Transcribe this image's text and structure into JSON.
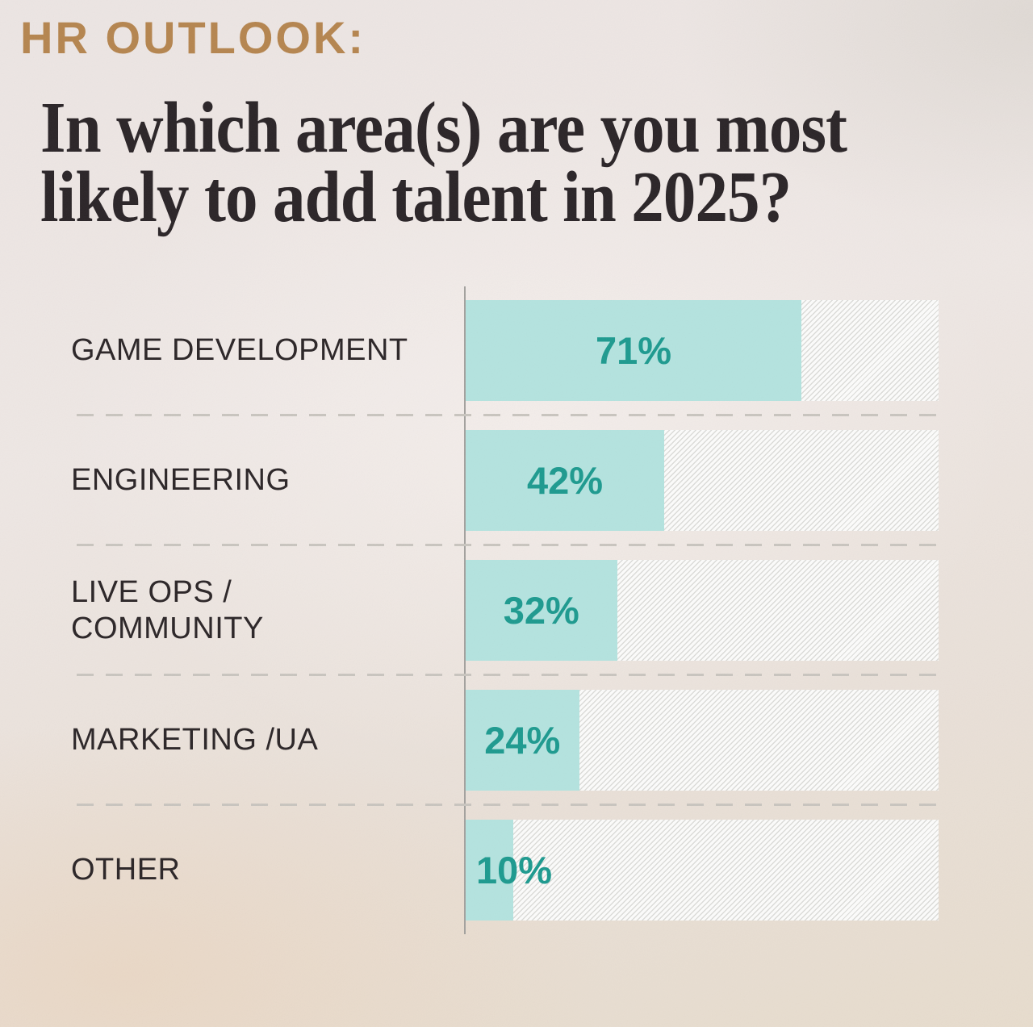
{
  "header": {
    "kicker": "HR OUTLOOK:"
  },
  "title": "In which area(s) are you most\nlikely to add talent in 2025?",
  "chart_data": {
    "type": "bar",
    "orientation": "horizontal",
    "title": "In which area(s) are you most likely to add talent in 2025?",
    "kicker": "HR OUTLOOK:",
    "categories": [
      "GAME DEVELOPMENT",
      "ENGINEERING",
      "LIVE OPS /\nCOMMUNITY",
      "MARKETING /UA",
      "OTHER"
    ],
    "values": [
      71,
      42,
      32,
      24,
      10
    ],
    "value_labels": [
      "71%",
      "42%",
      "32%",
      "24%",
      "10%"
    ],
    "value_suffix": "%",
    "xlim": [
      0,
      100
    ],
    "xlabel": "",
    "ylabel": "",
    "grid": "dashed row separators",
    "legend": "none",
    "colors": {
      "bar_fill": "#b4e3df",
      "value_text": "#1d9a8f",
      "track_background": "#fcfcfb",
      "track_hatch_line": "#dcdcd9",
      "category_label_text": "#2b2527",
      "title_text": "#2a2427",
      "kicker_text": "#b5854f",
      "separator_dash": "#c9c5bf",
      "axis_line": "#a3a19e"
    }
  }
}
